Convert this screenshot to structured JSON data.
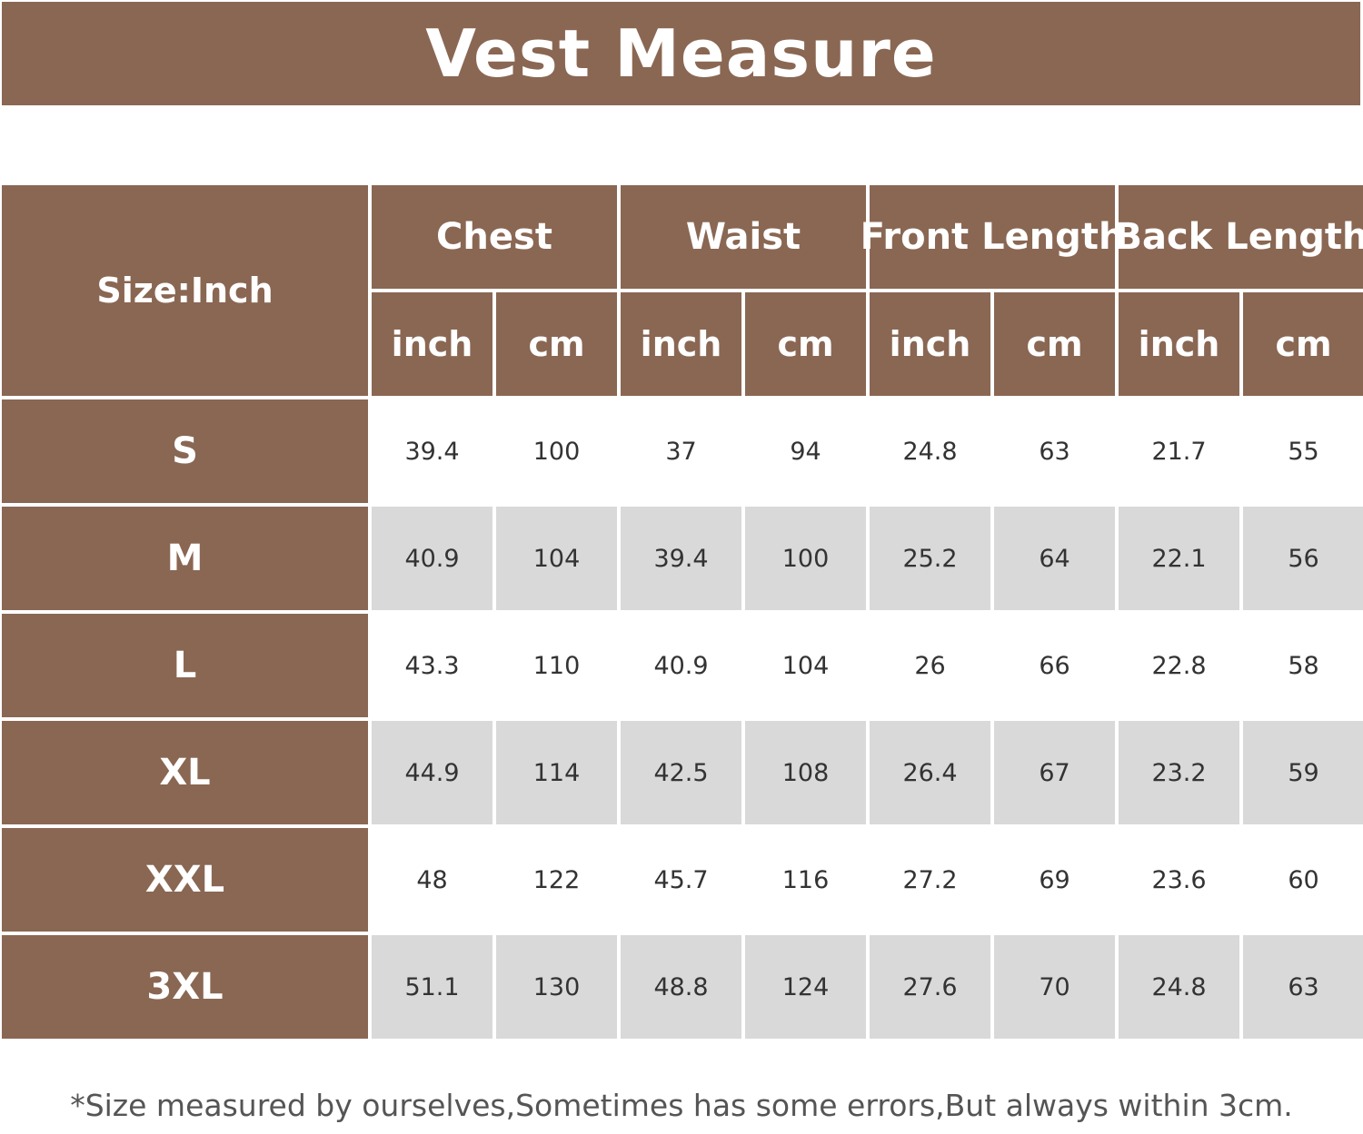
{
  "title": "Vest Measure",
  "table": {
    "corner": "Size:Inch",
    "groups": [
      "Chest",
      "Waist",
      "Front Length",
      "Back Length"
    ],
    "units": [
      "inch",
      "cm",
      "inch",
      "cm",
      "inch",
      "cm",
      "inch",
      "cm"
    ],
    "rows": [
      {
        "size": "S",
        "values": [
          "39.4",
          "100",
          "37",
          "94",
          "24.8",
          "63",
          "21.7",
          "55"
        ]
      },
      {
        "size": "M",
        "values": [
          "40.9",
          "104",
          "39.4",
          "100",
          "25.2",
          "64",
          "22.1",
          "56"
        ]
      },
      {
        "size": "L",
        "values": [
          "43.3",
          "110",
          "40.9",
          "104",
          "26",
          "66",
          "22.8",
          "58"
        ]
      },
      {
        "size": "XL",
        "values": [
          "44.9",
          "114",
          "42.5",
          "108",
          "26.4",
          "67",
          "23.2",
          "59"
        ]
      },
      {
        "size": "XXL",
        "values": [
          "48",
          "122",
          "45.7",
          "116",
          "27.2",
          "69",
          "23.6",
          "60"
        ]
      },
      {
        "size": "3XL",
        "values": [
          "51.1",
          "130",
          "48.8",
          "124",
          "27.6",
          "70",
          "24.8",
          "63"
        ]
      }
    ]
  },
  "note": "*Size measured by ourselves,Sometimes has some errors,But always within 3cm.",
  "colors": {
    "header": "#8a6753",
    "row_alt": "#d9d9d9",
    "row_plain": "#ffffff"
  }
}
